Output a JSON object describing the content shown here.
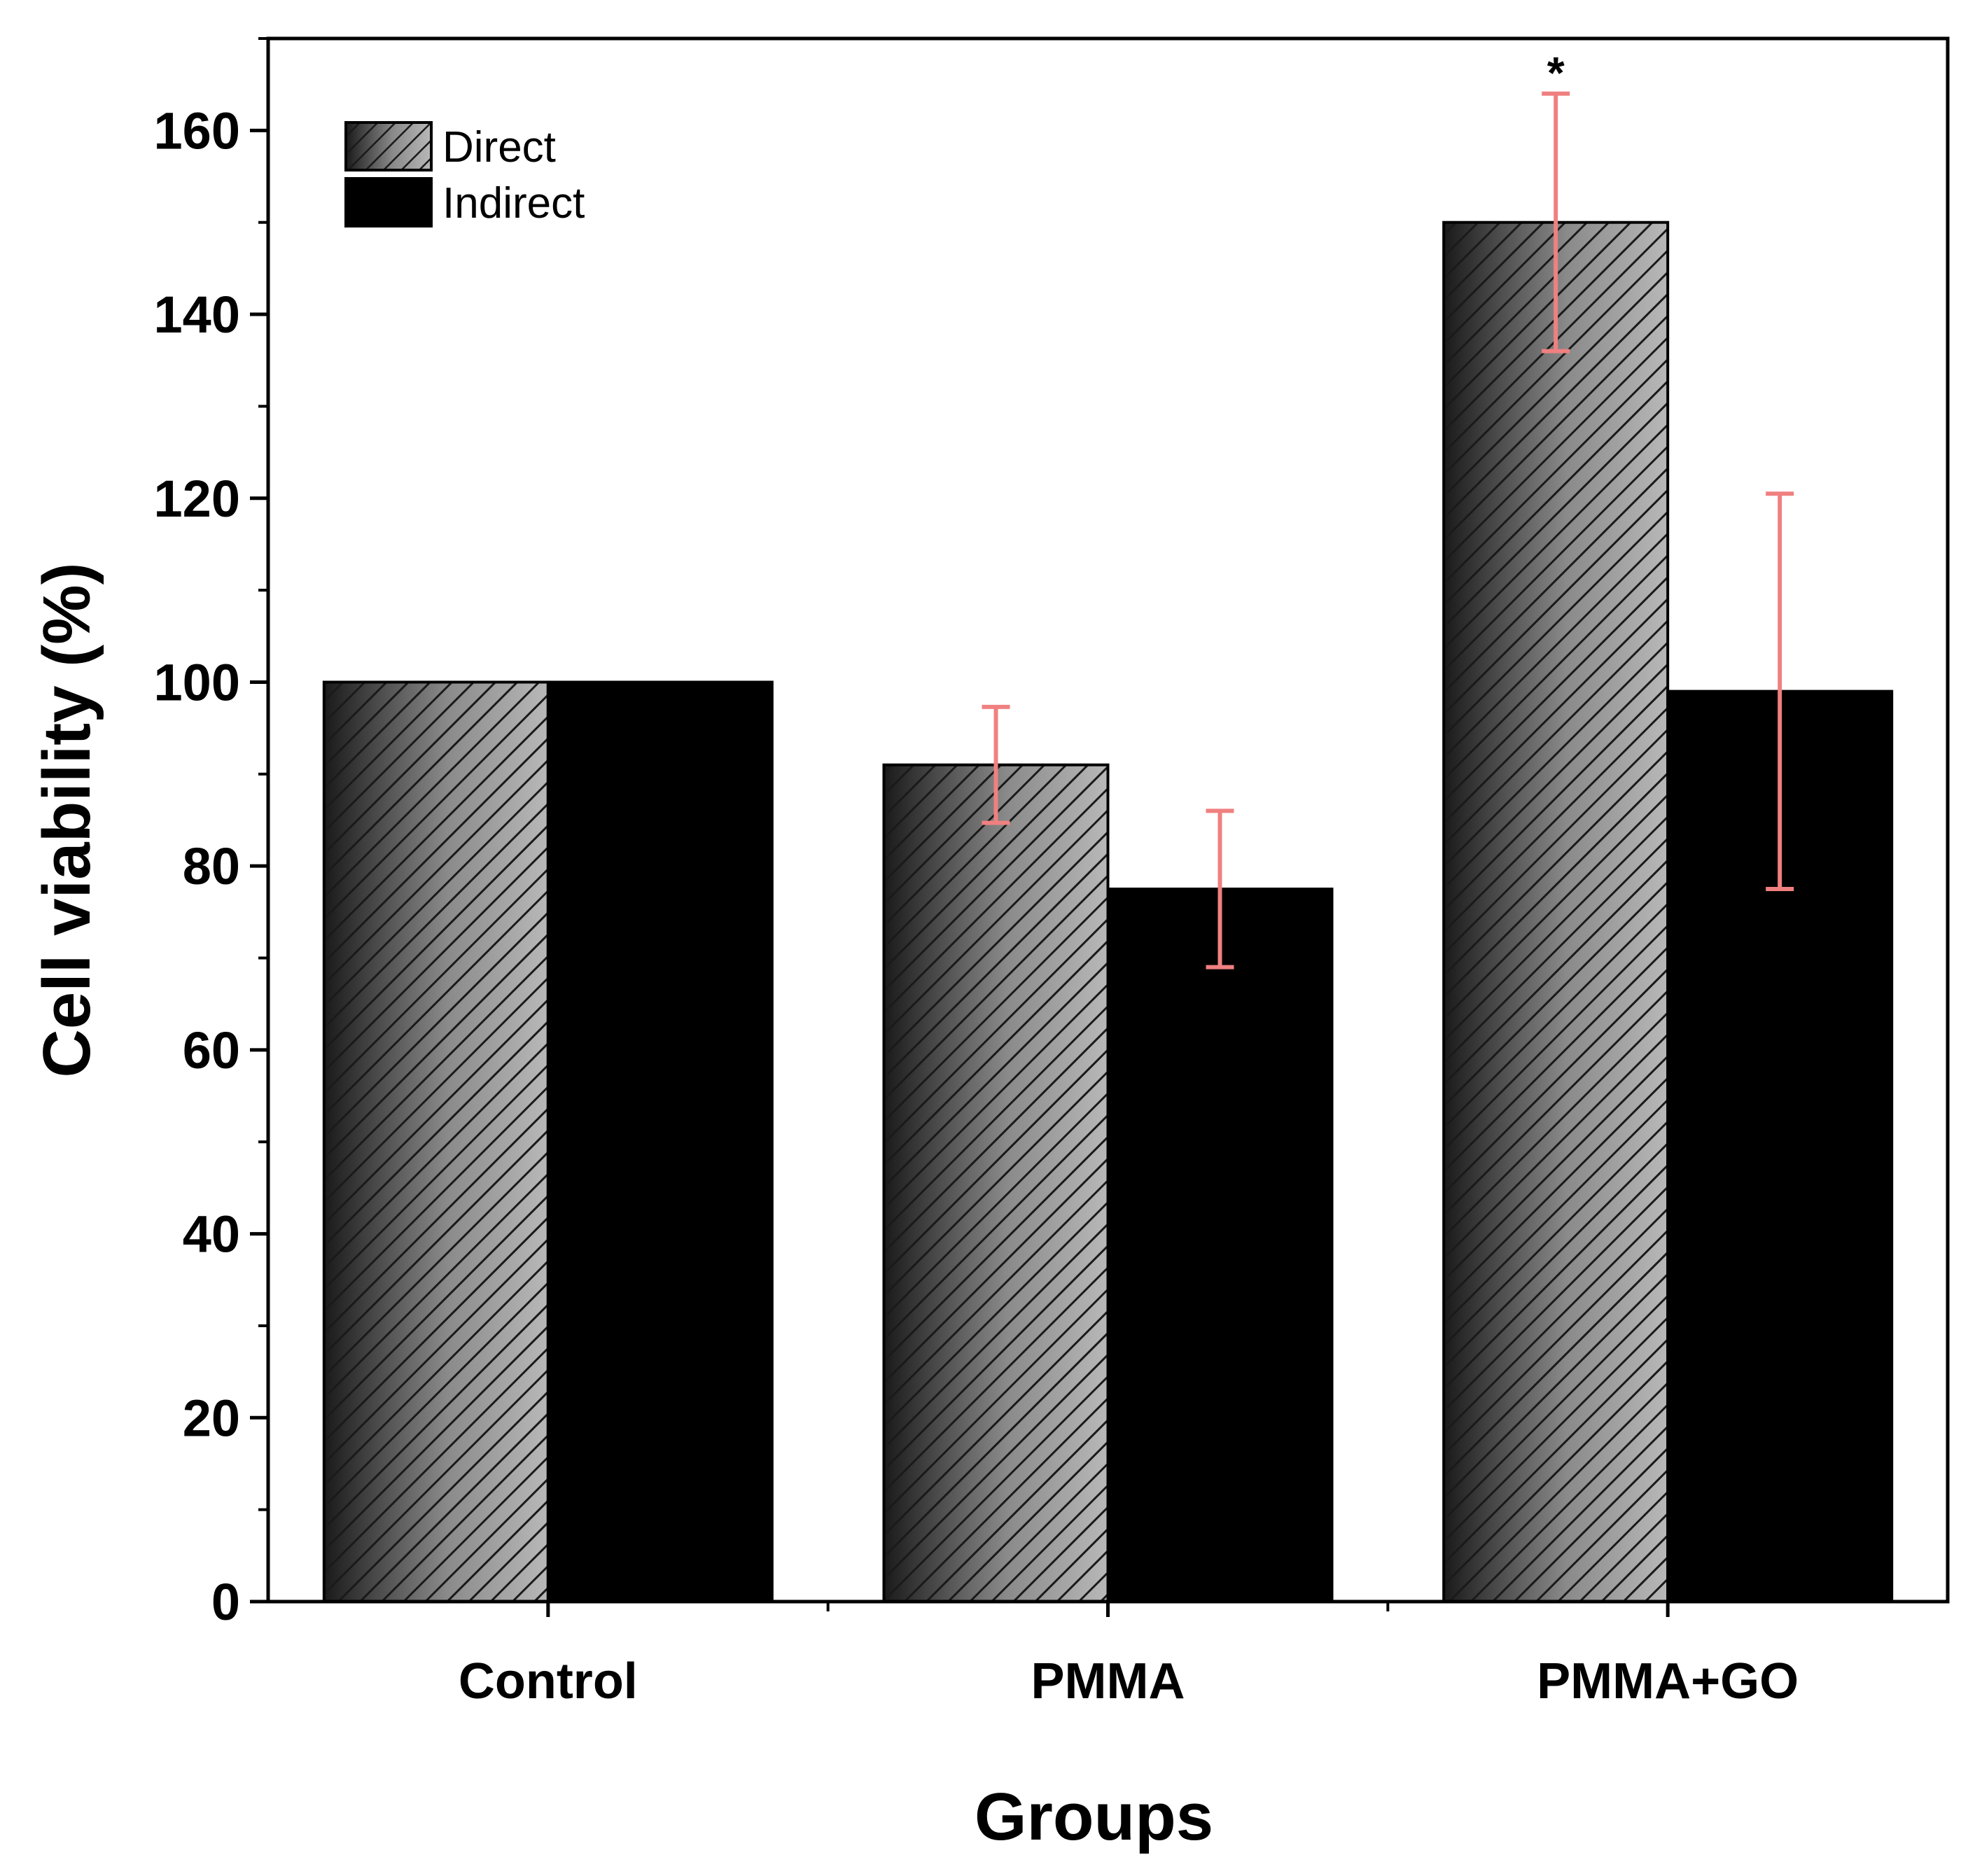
{
  "chart_data": {
    "type": "bar",
    "title": "",
    "xlabel": "Groups",
    "ylabel": "Cell viability (%)",
    "ylim": [
      0,
      170
    ],
    "yticks": [
      0,
      20,
      40,
      60,
      80,
      100,
      120,
      140,
      160
    ],
    "ytick_labels": [
      "0",
      "20",
      "40",
      "60",
      "80",
      "100",
      "120",
      "140",
      "160"
    ],
    "categories": [
      "Control",
      "PMMA",
      "PMMA+GO"
    ],
    "series": [
      {
        "name": "Direct",
        "values": [
          100,
          91,
          150
        ],
        "errors": [
          null,
          6.3,
          14
        ],
        "pattern": "hatched-gradient"
      },
      {
        "name": "Indirect",
        "values": [
          100,
          77.5,
          99
        ],
        "errors": [
          null,
          8.5,
          21.5
        ],
        "pattern": "solid"
      }
    ],
    "legend_position": "top-left",
    "annotations": [
      {
        "text": "*",
        "category": "PMMA+GO",
        "series": "Direct"
      }
    ],
    "colors": {
      "error_bar": "#f08080",
      "indirect": "#000000",
      "axis": "#000000"
    }
  }
}
